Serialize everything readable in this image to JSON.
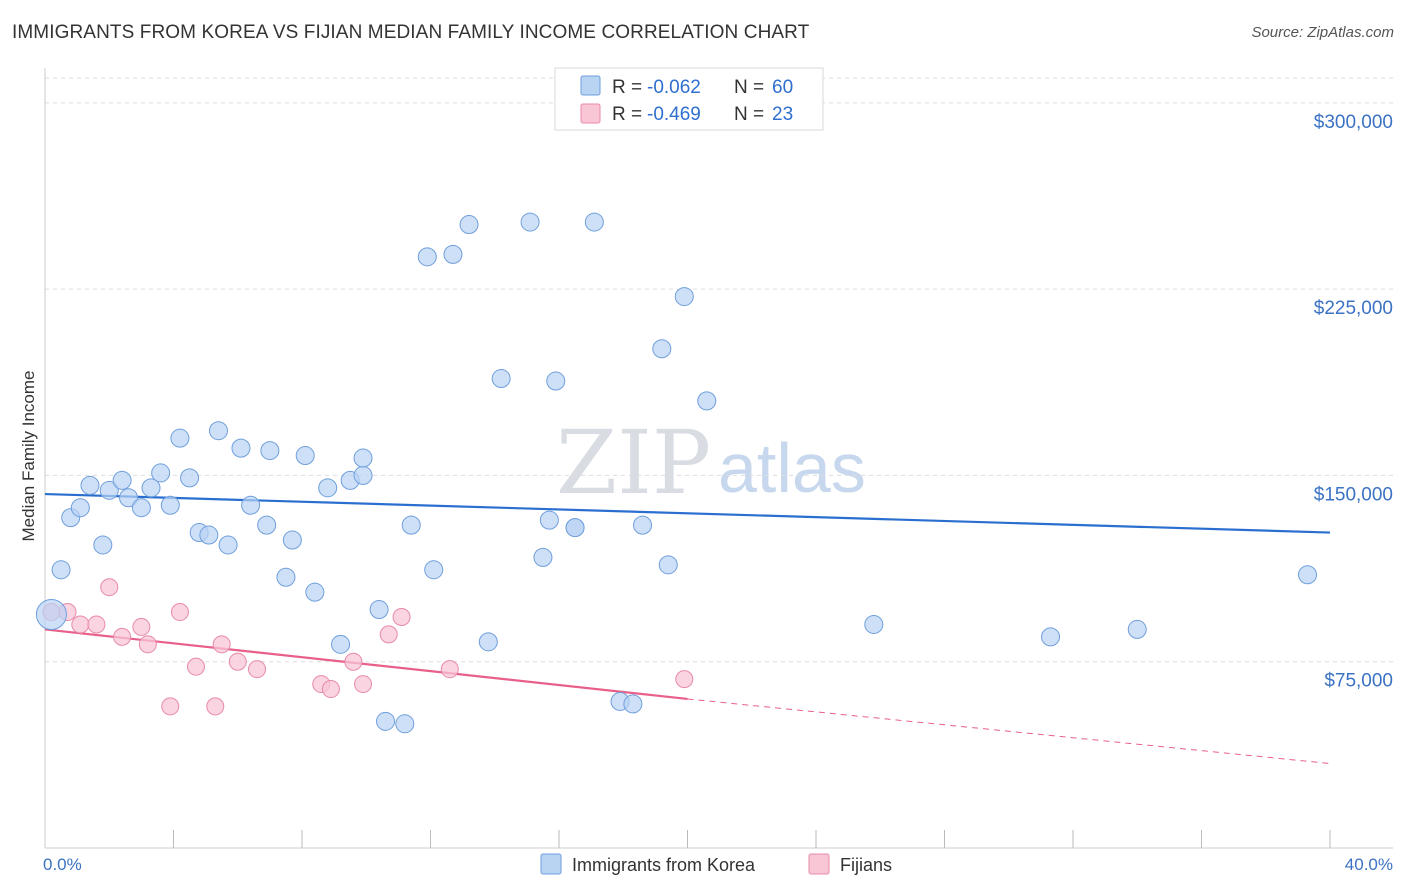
{
  "header": {
    "title": "IMMIGRANTS FROM KOREA VS FIJIAN MEDIAN FAMILY INCOME CORRELATION CHART",
    "source": "Source: ZipAtlas.com"
  },
  "watermark": {
    "zip": "ZIP",
    "atlas": "atlas"
  },
  "legend": {
    "rows": [
      {
        "r_label": "R =",
        "r_value": "-0.062",
        "n_label": "N =",
        "n_value": "60"
      },
      {
        "r_label": "R =",
        "r_value": "-0.469",
        "n_label": "N =",
        "n_value": "23"
      }
    ]
  },
  "colors": {
    "korea_fill": "#b9d3f3",
    "korea_stroke": "#6f9fdc",
    "korea_line": "#2a6fcf",
    "fiji_fill": "#f8c6d5",
    "fiji_stroke": "#e88aa8",
    "fiji_line": "#e8608a",
    "grid": "#dddddd",
    "axis_text": "#3b72c4"
  },
  "chart_data": {
    "type": "scatter",
    "title": "IMMIGRANTS FROM KOREA VS FIJIAN MEDIAN FAMILY INCOME CORRELATION CHART",
    "xlabel": "",
    "ylabel": "Median Family Income",
    "xlim": [
      0,
      40
    ],
    "ylim": [
      0,
      310000
    ],
    "x_tick_labels": [
      "0.0%",
      "40.0%"
    ],
    "y_ticks": [
      75000,
      150000,
      225000,
      300000
    ],
    "y_tick_labels": [
      "$75,000",
      "$150,000",
      "$225,000",
      "$300,000"
    ],
    "grid": true,
    "legend_position": "top-center",
    "series": [
      {
        "name": "Immigrants from Korea",
        "r": -0.062,
        "n": 60,
        "trend": {
          "x": [
            0,
            40
          ],
          "y": [
            142500,
            127000
          ]
        },
        "points": [
          {
            "x": 0.2,
            "y": 94000,
            "big": true
          },
          {
            "x": 0.5,
            "y": 112000
          },
          {
            "x": 0.8,
            "y": 133000
          },
          {
            "x": 1.1,
            "y": 137000
          },
          {
            "x": 1.4,
            "y": 146000
          },
          {
            "x": 1.8,
            "y": 122000
          },
          {
            "x": 2.0,
            "y": 144000
          },
          {
            "x": 2.4,
            "y": 148000
          },
          {
            "x": 2.6,
            "y": 141000
          },
          {
            "x": 3.0,
            "y": 137000
          },
          {
            "x": 3.3,
            "y": 145000
          },
          {
            "x": 3.6,
            "y": 151000
          },
          {
            "x": 3.9,
            "y": 138000
          },
          {
            "x": 4.2,
            "y": 165000
          },
          {
            "x": 4.5,
            "y": 149000
          },
          {
            "x": 4.8,
            "y": 127000
          },
          {
            "x": 5.1,
            "y": 126000
          },
          {
            "x": 5.4,
            "y": 168000
          },
          {
            "x": 5.7,
            "y": 122000
          },
          {
            "x": 6.1,
            "y": 161000
          },
          {
            "x": 6.4,
            "y": 138000
          },
          {
            "x": 6.9,
            "y": 130000
          },
          {
            "x": 7.0,
            "y": 160000
          },
          {
            "x": 7.5,
            "y": 109000
          },
          {
            "x": 7.7,
            "y": 124000
          },
          {
            "x": 8.1,
            "y": 158000
          },
          {
            "x": 8.4,
            "y": 103000
          },
          {
            "x": 8.8,
            "y": 145000
          },
          {
            "x": 9.2,
            "y": 82000
          },
          {
            "x": 9.5,
            "y": 148000
          },
          {
            "x": 9.9,
            "y": 150000
          },
          {
            "x": 9.9,
            "y": 157000
          },
          {
            "x": 10.4,
            "y": 96000
          },
          {
            "x": 10.6,
            "y": 51000
          },
          {
            "x": 11.2,
            "y": 50000
          },
          {
            "x": 11.4,
            "y": 130000
          },
          {
            "x": 11.9,
            "y": 238000
          },
          {
            "x": 12.1,
            "y": 112000
          },
          {
            "x": 12.7,
            "y": 239000
          },
          {
            "x": 13.2,
            "y": 251000
          },
          {
            "x": 13.8,
            "y": 83000
          },
          {
            "x": 14.2,
            "y": 189000
          },
          {
            "x": 15.1,
            "y": 252000
          },
          {
            "x": 15.5,
            "y": 117000
          },
          {
            "x": 15.7,
            "y": 132000
          },
          {
            "x": 15.9,
            "y": 188000
          },
          {
            "x": 16.5,
            "y": 129000
          },
          {
            "x": 16.5,
            "y": 129000
          },
          {
            "x": 17.1,
            "y": 252000
          },
          {
            "x": 17.9,
            "y": 59000
          },
          {
            "x": 18.3,
            "y": 58000
          },
          {
            "x": 18.6,
            "y": 130000
          },
          {
            "x": 19.2,
            "y": 201000
          },
          {
            "x": 19.4,
            "y": 114000
          },
          {
            "x": 19.9,
            "y": 222000
          },
          {
            "x": 20.6,
            "y": 180000
          },
          {
            "x": 25.8,
            "y": 90000
          },
          {
            "x": 31.3,
            "y": 85000
          },
          {
            "x": 34.0,
            "y": 88000
          },
          {
            "x": 39.3,
            "y": 110000
          }
        ]
      },
      {
        "name": "Fijians",
        "r": -0.469,
        "n": 23,
        "trend": {
          "x": [
            0,
            20
          ],
          "y": [
            88000,
            60000
          ]
        },
        "trend_dashed": {
          "x": [
            20,
            40
          ],
          "y": [
            60000,
            34000
          ]
        },
        "points": [
          {
            "x": 0.2,
            "y": 95000
          },
          {
            "x": 0.7,
            "y": 95000
          },
          {
            "x": 1.1,
            "y": 90000
          },
          {
            "x": 1.6,
            "y": 90000
          },
          {
            "x": 2.0,
            "y": 105000
          },
          {
            "x": 2.4,
            "y": 85000
          },
          {
            "x": 3.0,
            "y": 89000
          },
          {
            "x": 3.2,
            "y": 82000
          },
          {
            "x": 3.9,
            "y": 57000
          },
          {
            "x": 4.2,
            "y": 95000
          },
          {
            "x": 4.7,
            "y": 73000
          },
          {
            "x": 5.3,
            "y": 57000
          },
          {
            "x": 5.5,
            "y": 82000
          },
          {
            "x": 6.0,
            "y": 75000
          },
          {
            "x": 6.6,
            "y": 72000
          },
          {
            "x": 8.6,
            "y": 66000
          },
          {
            "x": 8.9,
            "y": 64000
          },
          {
            "x": 9.6,
            "y": 75000
          },
          {
            "x": 9.9,
            "y": 66000
          },
          {
            "x": 10.7,
            "y": 86000
          },
          {
            "x": 11.1,
            "y": 93000
          },
          {
            "x": 12.6,
            "y": 72000
          },
          {
            "x": 19.9,
            "y": 68000
          }
        ]
      }
    ]
  }
}
